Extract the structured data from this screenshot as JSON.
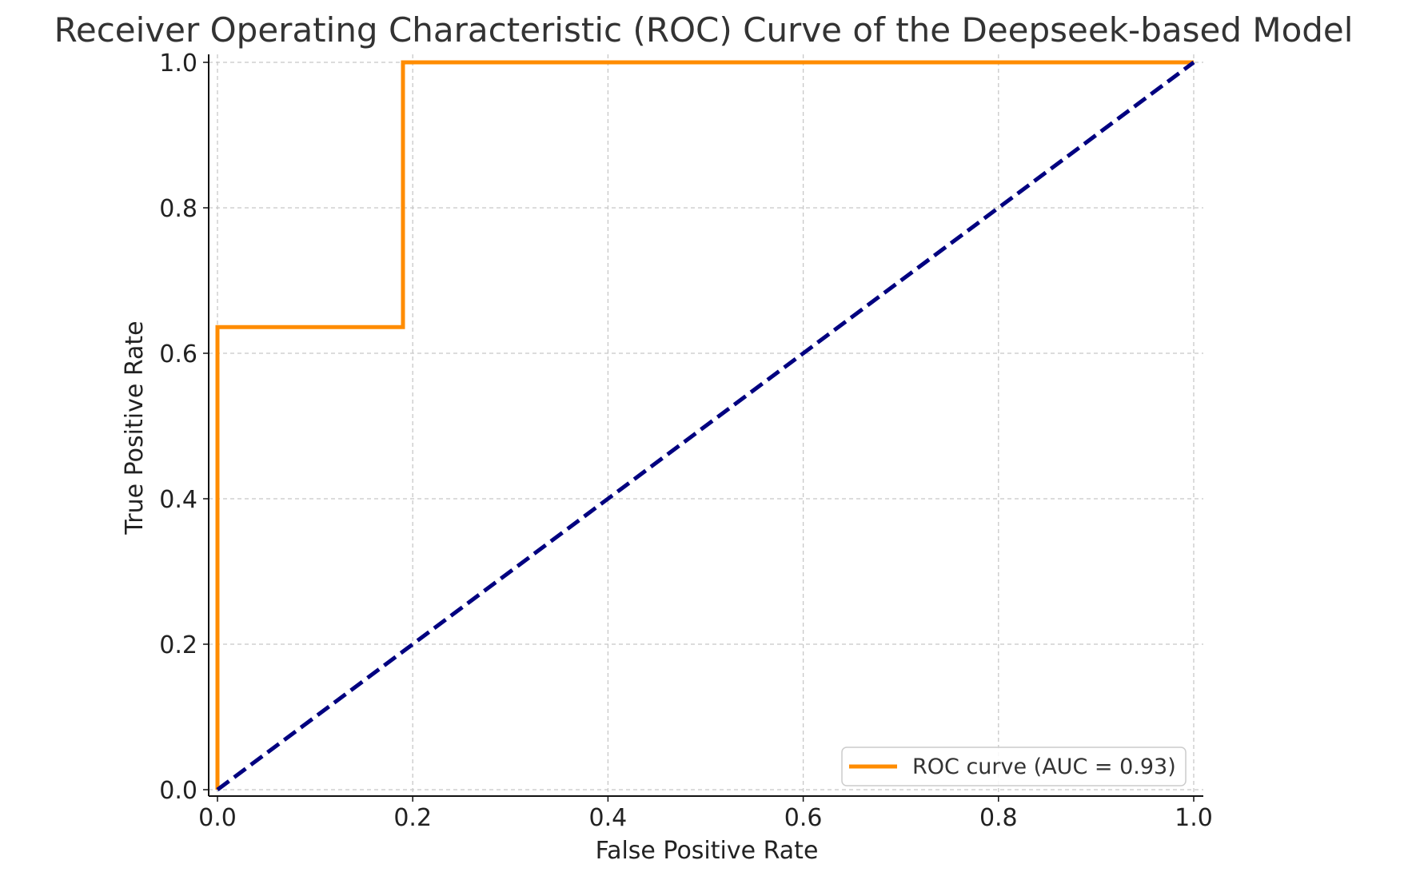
{
  "chart_data": {
    "type": "line",
    "title": "Receiver Operating Characteristic (ROC) Curve of the Deepseek-based Model",
    "xlabel": "False Positive Rate",
    "ylabel": "True Positive Rate",
    "xlim": [
      0.0,
      1.0
    ],
    "ylim": [
      0.0,
      1.0
    ],
    "xticks": [
      "0.0",
      "0.2",
      "0.4",
      "0.6",
      "0.8",
      "1.0"
    ],
    "yticks": [
      "0.0",
      "0.2",
      "0.4",
      "0.6",
      "0.8",
      "1.0"
    ],
    "grid": true,
    "legend_position": "lower-right",
    "series": [
      {
        "name": "ROC curve (AUC = 0.93)",
        "color": "#ff8c00",
        "style": "solid",
        "x": [
          0.0,
          0.0,
          0.19,
          0.19,
          1.0
        ],
        "y": [
          0.0,
          0.636,
          0.636,
          1.0,
          1.0
        ]
      },
      {
        "color": "#000080",
        "style": "dashed",
        "x": [
          0.0,
          1.0
        ],
        "y": [
          0.0,
          1.0
        ]
      }
    ]
  }
}
